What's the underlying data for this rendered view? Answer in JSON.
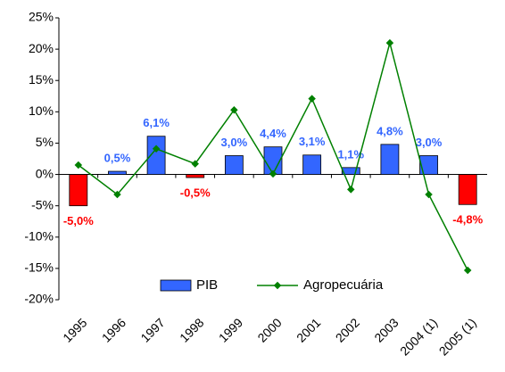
{
  "chart_data": {
    "type": "bar-line",
    "categories": [
      "1995",
      "1996",
      "1997",
      "1998",
      "1999",
      "2000",
      "2001",
      "2002",
      "2003",
      "2004 (1)",
      "2005 (1)"
    ],
    "series": [
      {
        "name": "PIB",
        "type": "bar",
        "color": "#3366ff",
        "negative_color": "#ff0000",
        "values": [
          -5.0,
          0.5,
          6.1,
          -0.5,
          3.0,
          4.4,
          3.1,
          1.1,
          4.8,
          3.0,
          -4.8
        ],
        "value_labels": [
          "-5,0%",
          "0,5%",
          "6,1%",
          "-0,5%",
          "3,0%",
          "4,4%",
          "3,1%",
          "1,1%",
          "4,8%",
          "3,0%",
          "-4,8%"
        ]
      },
      {
        "name": "Agropecuária",
        "type": "line",
        "color": "#008000",
        "values": [
          1.5,
          -3.2,
          4.1,
          1.7,
          10.3,
          0.1,
          12.1,
          -2.4,
          21.0,
          -3.2,
          -15.3
        ]
      }
    ],
    "ylim": [
      -20,
      25
    ],
    "yticks": [
      {
        "value": -20,
        "label": "-20%"
      },
      {
        "value": -15,
        "label": "-15%"
      },
      {
        "value": -10,
        "label": "-10%"
      },
      {
        "value": -5,
        "label": "-5%"
      },
      {
        "value": 0,
        "label": "0%"
      },
      {
        "value": 5,
        "label": "5%"
      },
      {
        "value": 10,
        "label": "10%"
      },
      {
        "value": 15,
        "label": "15%"
      },
      {
        "value": 20,
        "label": "20%"
      },
      {
        "value": 25,
        "label": "25%"
      }
    ],
    "grid": false,
    "legend": "bottom"
  }
}
